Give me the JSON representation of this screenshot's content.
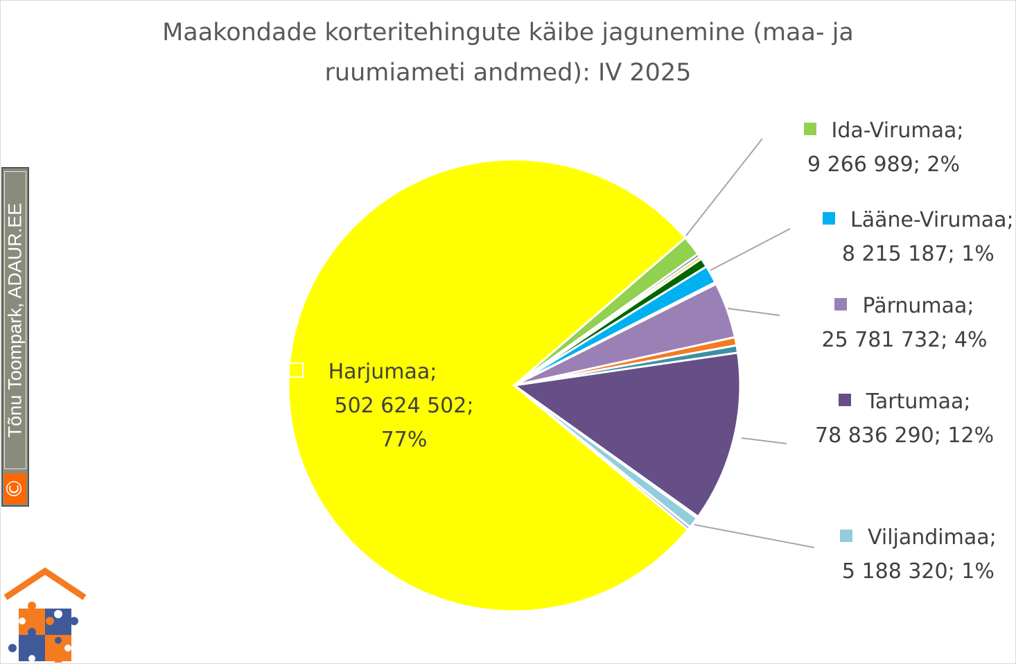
{
  "chart_data": {
    "type": "pie",
    "title": "Maakondade korteritehingute käibe jagunemine (maa- ja ruumiameti andmed): IV 2025",
    "title_lines": [
      "Maakondade korteritehingute käibe jagunemine (maa- ja",
      "ruumiameti andmed): IV 2025"
    ],
    "slices": [
      {
        "name": "Harjumaa",
        "value": 502624502,
        "percent": "77%",
        "label_lines": [
          "Harjumaa;",
          "502 624 502;",
          "77%"
        ],
        "color": "#FFFF00",
        "labeled": true
      },
      {
        "name": "Ida-Virumaa",
        "value": 9266989,
        "percent": "2%",
        "label_lines": [
          "Ida-Virumaa;",
          "9 266 989; 2%"
        ],
        "color": "#92D050",
        "labeled": true
      },
      {
        "value": 1400000,
        "color": "#44719E",
        "labeled": false
      },
      {
        "value": 1400000,
        "color": "#FFC000",
        "labeled": false
      },
      {
        "value": 4200000,
        "color": "#006600",
        "labeled": false
      },
      {
        "name": "Lääne-Virumaa",
        "value": 8215187,
        "percent": "1%",
        "label_lines": [
          "Lääne-Virumaa;",
          "8 215 187; 1%"
        ],
        "color": "#00B0F0",
        "labeled": true
      },
      {
        "value": 900000,
        "color": "#C00000",
        "labeled": false
      },
      {
        "name": "Pärnumaa",
        "value": 25781732,
        "percent": "4%",
        "label_lines": [
          "Pärnumaa;",
          "25 781 732; 4%"
        ],
        "color": "#9A80B4",
        "labeled": true
      },
      {
        "value": 3800000,
        "color": "#F47B20",
        "labeled": false
      },
      {
        "value": 3400000,
        "color": "#3D8FA6",
        "labeled": false
      },
      {
        "name": "Tartumaa",
        "value": 78836290,
        "percent": "12%",
        "label_lines": [
          "Tartumaa;",
          "78 836 290; 12%"
        ],
        "color": "#664E86",
        "labeled": true
      },
      {
        "value": 800000,
        "color": "#F8B98E",
        "labeled": false
      },
      {
        "name": "Viljandimaa",
        "value": 5188320,
        "percent": "1%",
        "label_lines": [
          "Viljandimaa;",
          "5 188 320; 1%"
        ],
        "color": "#92CDDC",
        "labeled": true
      },
      {
        "value": 1500000,
        "color": "#B3A2C7",
        "labeled": false
      }
    ],
    "leader_line_color": "#A6A6A6"
  },
  "watermark": {
    "text": "Tõnu Toompark, ADAUR.EE",
    "symbol": "©",
    "box_color": "#8B8B7D",
    "symbol_color": "#FF6600"
  },
  "logo": {
    "icon": "house-puzzle-logo",
    "colors": [
      "#F47B20",
      "#3F5A9A"
    ]
  }
}
